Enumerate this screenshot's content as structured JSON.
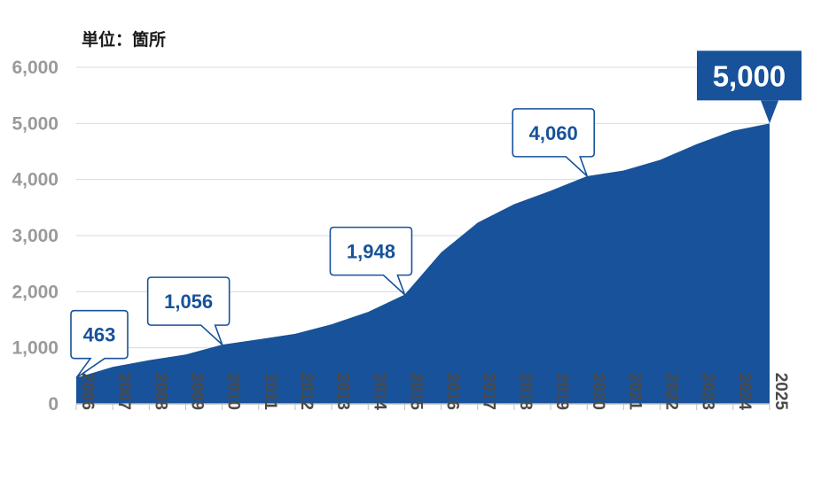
{
  "chart_data": {
    "type": "area",
    "unit_label": "単位：箇所",
    "x": [
      "2006",
      "2007",
      "2008",
      "2009",
      "2010",
      "2011",
      "2012",
      "2013",
      "2014",
      "2015",
      "2016",
      "2017",
      "2018",
      "2019",
      "2020",
      "2021",
      "2022",
      "2023",
      "2024",
      "2025"
    ],
    "values": [
      463,
      660,
      780,
      880,
      1056,
      1150,
      1250,
      1420,
      1640,
      1948,
      2700,
      3230,
      3560,
      3800,
      4060,
      4160,
      4350,
      4630,
      4870,
      5000
    ],
    "ylim": [
      0,
      6000
    ],
    "yticks": [
      "0",
      "1,000",
      "2,000",
      "3,000",
      "4,000",
      "5,000",
      "6,000"
    ],
    "gridlines": true,
    "colors": {
      "fill": "#17529A",
      "grid": "#d9d9d9",
      "axis": "#bfbfbf",
      "callout_text": "#17529A",
      "highlight_text": "#ffffff"
    },
    "annotations": [
      {
        "year": "2006",
        "label": "463",
        "highlight": false
      },
      {
        "year": "2010",
        "label": "1,056",
        "highlight": false
      },
      {
        "year": "2015",
        "label": "1,948",
        "highlight": false
      },
      {
        "year": "2020",
        "label": "4,060",
        "highlight": false
      },
      {
        "year": "2025",
        "label": "5,000",
        "highlight": true
      }
    ]
  }
}
